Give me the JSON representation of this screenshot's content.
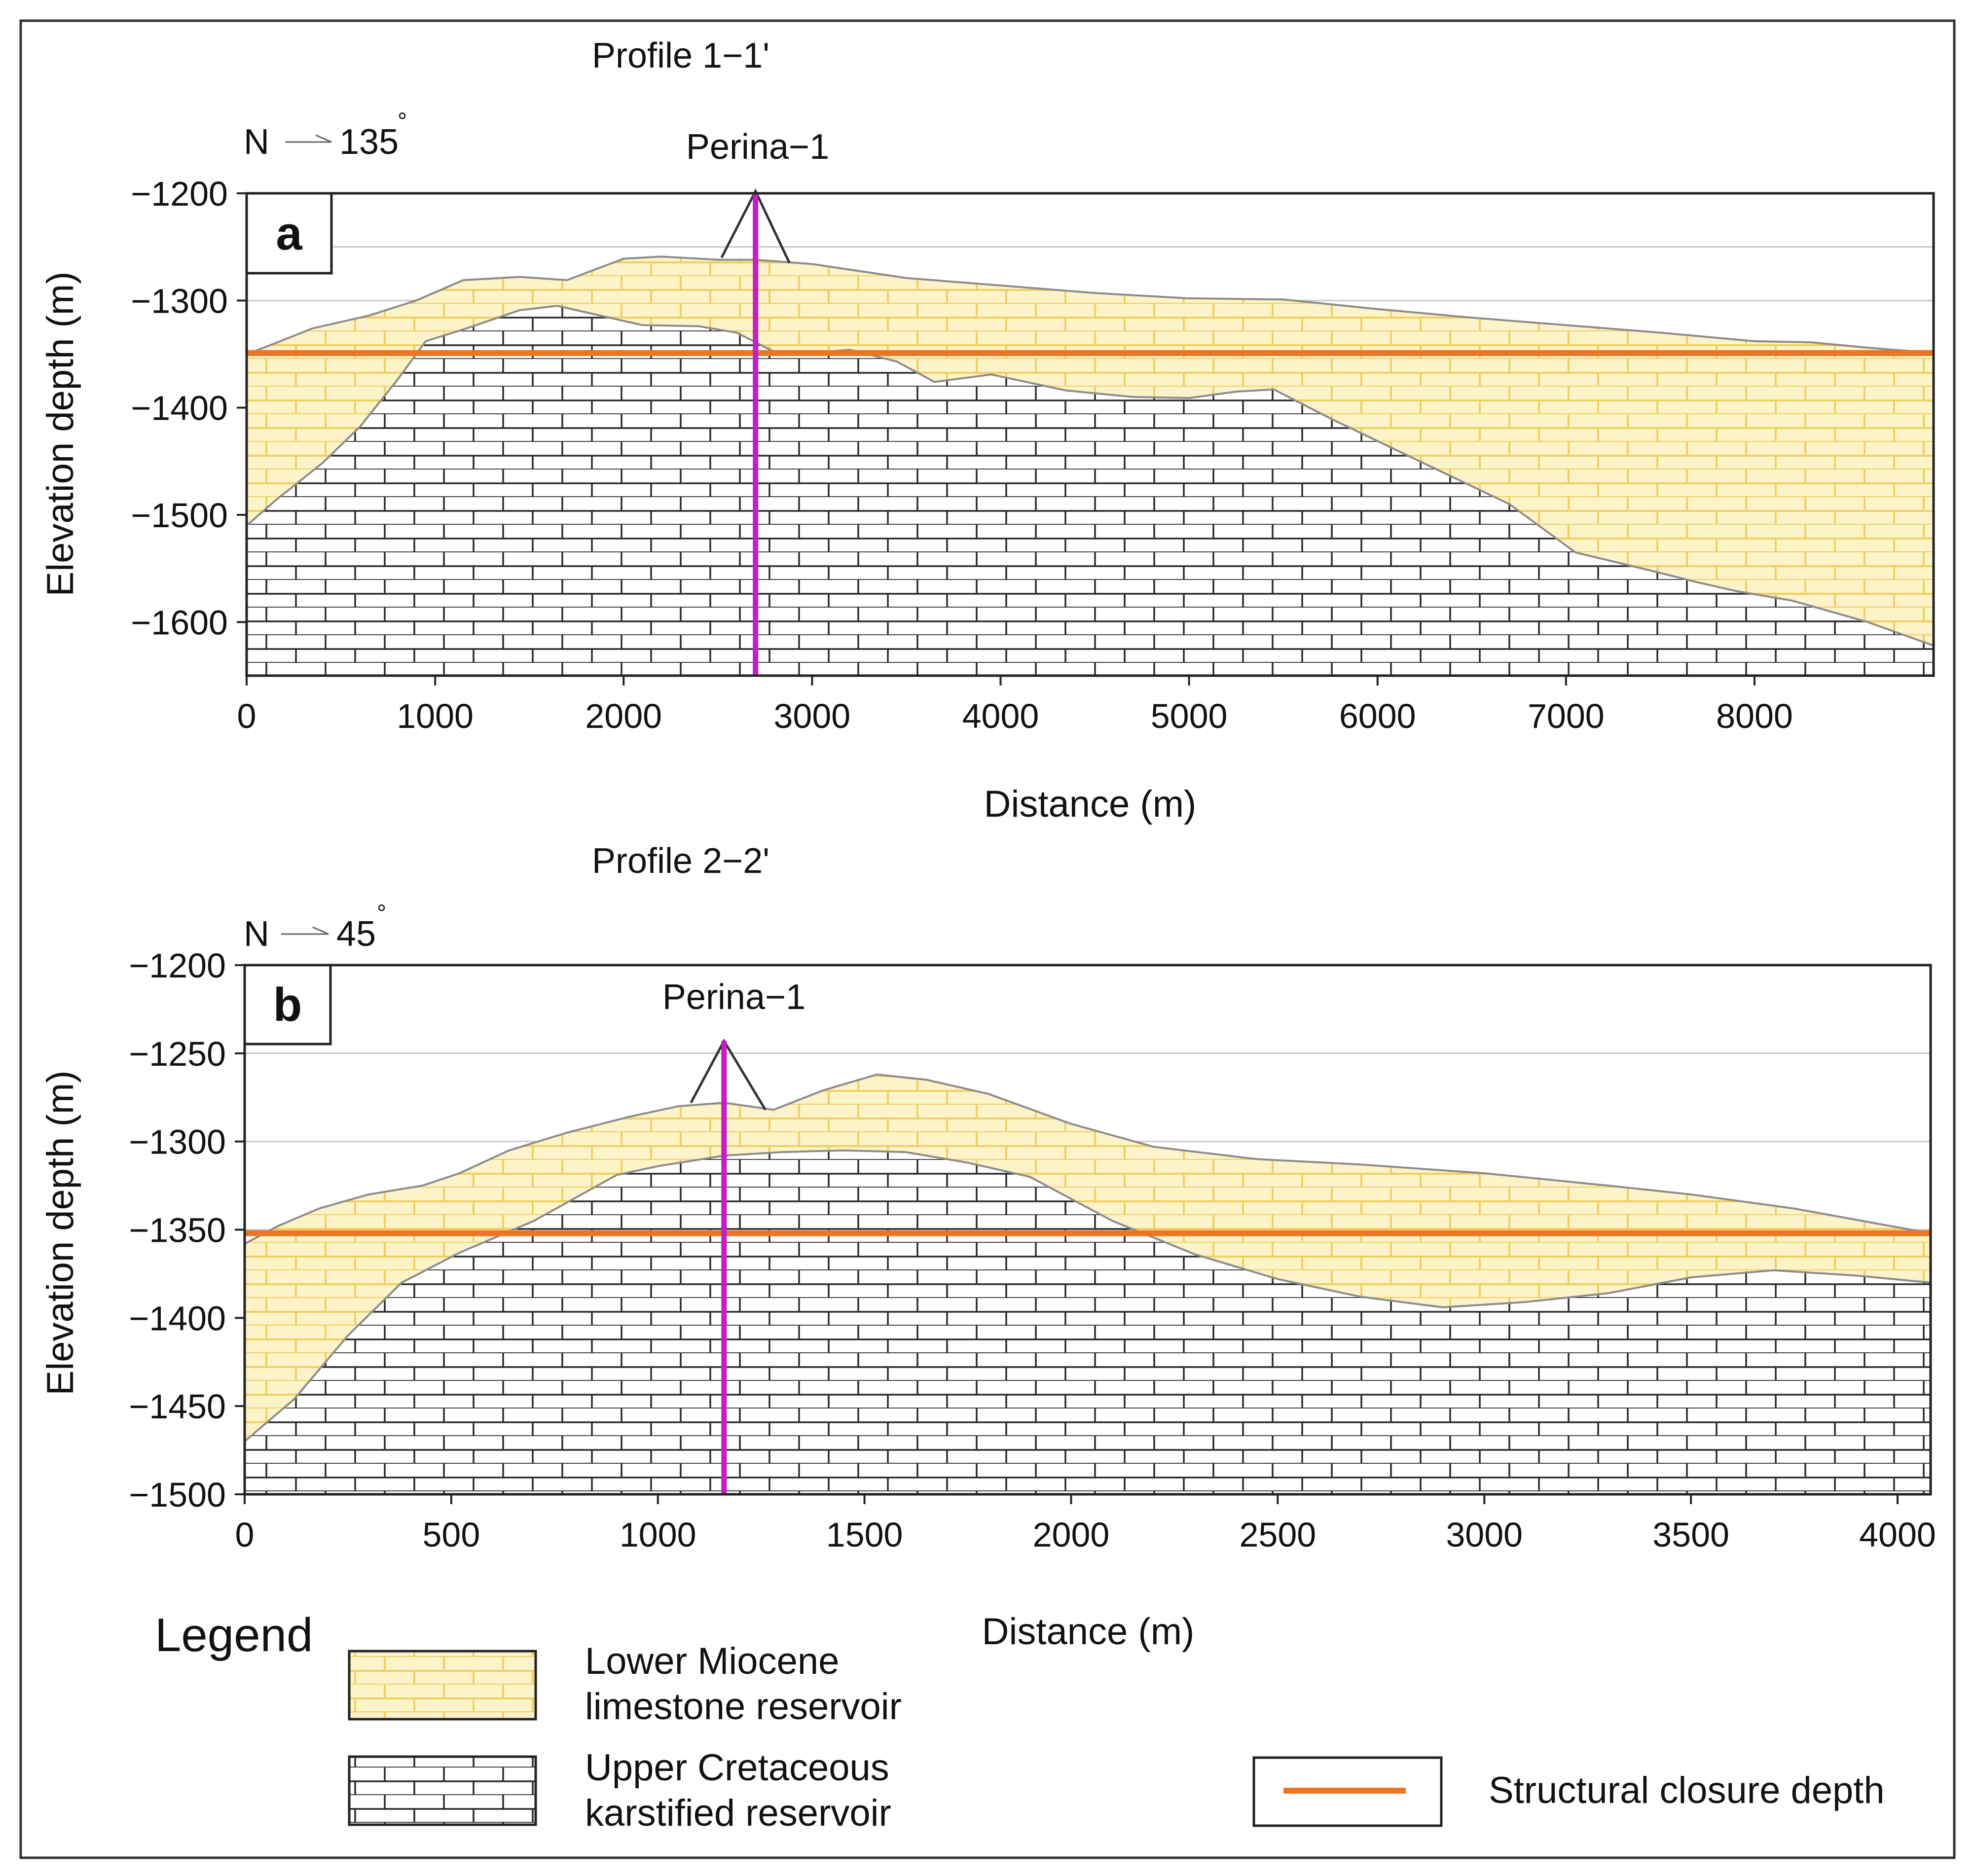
{
  "chart_data": [
    {
      "type": "area",
      "panel_label": "a",
      "title": "Profile 1−1'",
      "orientation_prefix": "N",
      "orientation_value": "135",
      "orientation_degree_symbol": "°",
      "well_name": "Perina−1",
      "well_x": 2700,
      "well_top_y": -1200,
      "xlabel": "Distance (m)",
      "ylabel": "Elevation depth (m)",
      "xlim": [
        0,
        8950
      ],
      "ylim": [
        -1650,
        -1200
      ],
      "xticks": [
        0,
        1000,
        2000,
        3000,
        4000,
        5000,
        6000,
        7000,
        8000
      ],
      "yticks": [
        -1200,
        -1300,
        -1400,
        -1500,
        -1600
      ],
      "grid_y": [
        -1250,
        -1300,
        -1350,
        -1400,
        -1450,
        -1500,
        -1550,
        -1600
      ],
      "closure_depth": -1349,
      "well_symbol": [
        [
          2520,
          -1260
        ],
        [
          2700,
          -1198
        ],
        [
          2880,
          -1265
        ]
      ],
      "miocene_top": [
        [
          0,
          -1350
        ],
        [
          150,
          -1340
        ],
        [
          350,
          -1326
        ],
        [
          650,
          -1314
        ],
        [
          900,
          -1300
        ],
        [
          1150,
          -1281
        ],
        [
          1450,
          -1278
        ],
        [
          1700,
          -1281
        ],
        [
          2000,
          -1261
        ],
        [
          2200,
          -1259
        ],
        [
          2500,
          -1262
        ],
        [
          2700,
          -1262
        ],
        [
          3000,
          -1266
        ],
        [
          3500,
          -1279
        ],
        [
          4000,
          -1286
        ],
        [
          4500,
          -1293
        ],
        [
          5000,
          -1298
        ],
        [
          5500,
          -1299
        ],
        [
          6000,
          -1308
        ],
        [
          6500,
          -1316
        ],
        [
          7000,
          -1323
        ],
        [
          7500,
          -1330
        ],
        [
          8000,
          -1338
        ],
        [
          8300,
          -1339
        ],
        [
          8600,
          -1344
        ],
        [
          8950,
          -1349
        ]
      ],
      "cretaceous_top": [
        [
          0,
          -1510
        ],
        [
          150,
          -1487
        ],
        [
          400,
          -1452
        ],
        [
          600,
          -1418
        ],
        [
          800,
          -1374
        ],
        [
          950,
          -1338
        ],
        [
          1150,
          -1327
        ],
        [
          1450,
          -1309
        ],
        [
          1650,
          -1305
        ],
        [
          1850,
          -1313
        ],
        [
          2100,
          -1323
        ],
        [
          2400,
          -1324
        ],
        [
          2600,
          -1330
        ],
        [
          2800,
          -1348
        ],
        [
          3000,
          -1349
        ],
        [
          3200,
          -1346
        ],
        [
          3450,
          -1357
        ],
        [
          3650,
          -1376
        ],
        [
          3950,
          -1369
        ],
        [
          4350,
          -1384
        ],
        [
          4700,
          -1390
        ],
        [
          5000,
          -1391
        ],
        [
          5250,
          -1385
        ],
        [
          5450,
          -1383
        ],
        [
          5750,
          -1410
        ],
        [
          6200,
          -1448
        ],
        [
          6700,
          -1490
        ],
        [
          7050,
          -1535
        ],
        [
          7450,
          -1552
        ],
        [
          7700,
          -1563
        ],
        [
          7900,
          -1571
        ],
        [
          8200,
          -1580
        ],
        [
          8600,
          -1600
        ],
        [
          8950,
          -1622
        ]
      ],
      "colors": {
        "miocene_fill": "#fdf3c8",
        "miocene_brick": "#f0cf62",
        "cretaceous_fill": "#ffffff",
        "cretaceous_brick": "#2a2a2a",
        "closure": "#ee7422",
        "well": "#c41ec4",
        "boundary": "#8c8c8c",
        "grid": "#c9c9c9"
      }
    },
    {
      "type": "area",
      "panel_label": "b",
      "title": "Profile 2−2'",
      "orientation_prefix": "N",
      "orientation_value": "45",
      "orientation_degree_symbol": "°",
      "well_name": "Perina−1",
      "well_x": 1160,
      "well_top_y": -1243,
      "xlabel": "Distance (m)",
      "ylabel": "Elevation depth (m)",
      "xlim": [
        0,
        4080
      ],
      "ylim": [
        -1500,
        -1200
      ],
      "xticks": [
        0,
        500,
        1000,
        1500,
        2000,
        2500,
        3000,
        3500,
        4000
      ],
      "yticks": [
        -1200,
        -1250,
        -1300,
        -1350,
        -1400,
        -1450,
        -1500
      ],
      "grid_y": [
        -1250,
        -1300,
        -1350,
        -1400,
        -1450
      ],
      "closure_depth": -1352,
      "well_symbol": [
        [
          1080,
          -1278
        ],
        [
          1160,
          -1243
        ],
        [
          1260,
          -1282
        ]
      ],
      "miocene_top": [
        [
          0,
          -1358
        ],
        [
          80,
          -1348
        ],
        [
          180,
          -1338
        ],
        [
          300,
          -1330
        ],
        [
          430,
          -1325
        ],
        [
          520,
          -1318
        ],
        [
          640,
          -1305
        ],
        [
          780,
          -1295
        ],
        [
          930,
          -1286
        ],
        [
          1050,
          -1280
        ],
        [
          1160,
          -1278
        ],
        [
          1280,
          -1282
        ],
        [
          1400,
          -1271
        ],
        [
          1530,
          -1262
        ],
        [
          1650,
          -1265
        ],
        [
          1800,
          -1273
        ],
        [
          2000,
          -1290
        ],
        [
          2200,
          -1303
        ],
        [
          2450,
          -1310
        ],
        [
          2700,
          -1313
        ],
        [
          3000,
          -1318
        ],
        [
          3300,
          -1325
        ],
        [
          3500,
          -1330
        ],
        [
          3750,
          -1338
        ],
        [
          4080,
          -1352
        ]
      ],
      "cretaceous_top": [
        [
          0,
          -1470
        ],
        [
          120,
          -1446
        ],
        [
          250,
          -1410
        ],
        [
          380,
          -1380
        ],
        [
          520,
          -1363
        ],
        [
          700,
          -1345
        ],
        [
          900,
          -1319
        ],
        [
          1000,
          -1314
        ],
        [
          1160,
          -1308
        ],
        [
          1300,
          -1306
        ],
        [
          1450,
          -1305
        ],
        [
          1600,
          -1306
        ],
        [
          1750,
          -1312
        ],
        [
          1900,
          -1320
        ],
        [
          2100,
          -1345
        ],
        [
          2300,
          -1364
        ],
        [
          2500,
          -1378
        ],
        [
          2700,
          -1388
        ],
        [
          2900,
          -1394
        ],
        [
          3100,
          -1391
        ],
        [
          3300,
          -1386
        ],
        [
          3500,
          -1377
        ],
        [
          3700,
          -1373
        ],
        [
          3900,
          -1376
        ],
        [
          4080,
          -1380
        ]
      ],
      "colors": {
        "miocene_fill": "#fdf3c8",
        "miocene_brick": "#f0cf62",
        "cretaceous_fill": "#ffffff",
        "cretaceous_brick": "#2a2a2a",
        "closure": "#ee7422",
        "well": "#c41ec4",
        "boundary": "#8c8c8c",
        "grid": "#c9c9c9"
      }
    }
  ],
  "legend": {
    "title": "Legend",
    "items": [
      {
        "line1": "Lower Miocene",
        "line2": "limestone reservoir"
      },
      {
        "line1": "Upper Cretaceous",
        "line2": "karstified reservoir"
      }
    ],
    "closure_label": "Structural closure depth"
  }
}
